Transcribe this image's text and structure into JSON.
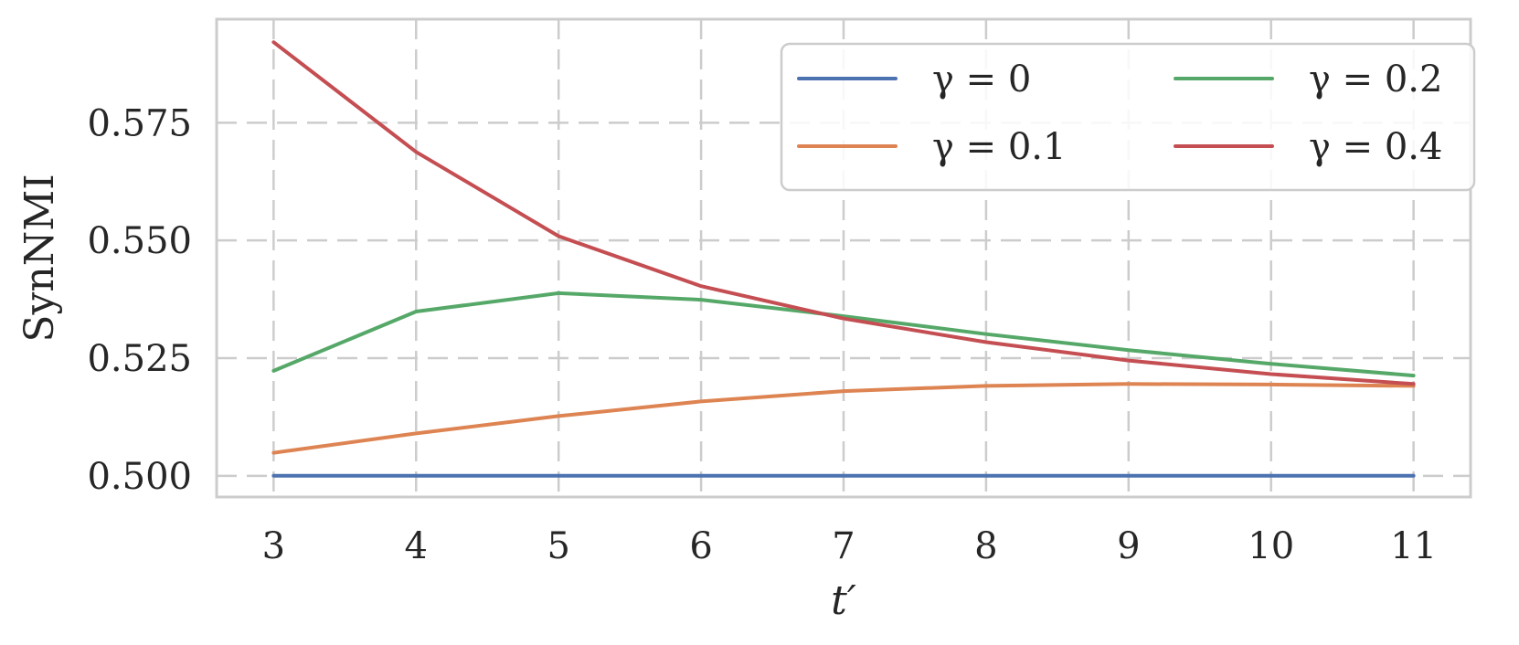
{
  "chart_data": {
    "type": "line",
    "x": [
      3,
      4,
      5,
      6,
      7,
      8,
      9,
      10,
      11
    ],
    "xlabel": "t′",
    "ylabel": "SynNMI",
    "xticks": [
      "3",
      "4",
      "5",
      "6",
      "7",
      "8",
      "9",
      "10",
      "11"
    ],
    "yticks": [
      "0.500",
      "0.525",
      "0.550",
      "0.575"
    ],
    "ytick_values": [
      0.5,
      0.525,
      0.55,
      0.575
    ],
    "xlim": [
      2.6,
      11.4
    ],
    "ylim": [
      0.4955,
      0.597
    ],
    "grid": true,
    "legend_position": "top-right",
    "series": [
      {
        "name": "γ = 0",
        "color": "#4c72b0",
        "values": [
          0.5,
          0.5,
          0.5,
          0.5,
          0.5,
          0.5,
          0.5,
          0.5,
          0.5
        ]
      },
      {
        "name": "γ = 0.1",
        "color": "#dd8452",
        "values": [
          0.5049,
          0.509,
          0.5127,
          0.5158,
          0.518,
          0.5191,
          0.5195,
          0.5194,
          0.5191
        ]
      },
      {
        "name": "γ = 0.2",
        "color": "#55a868",
        "values": [
          0.5223,
          0.5349,
          0.5388,
          0.5374,
          0.5339,
          0.5301,
          0.5267,
          0.5238,
          0.5213
        ]
      },
      {
        "name": "γ = 0.4",
        "color": "#c44e52",
        "values": [
          0.5921,
          0.5688,
          0.5509,
          0.5403,
          0.5334,
          0.5284,
          0.5245,
          0.5216,
          0.5195
        ]
      }
    ],
    "legend_columns": [
      [
        0,
        1
      ],
      [
        2,
        3
      ]
    ]
  }
}
